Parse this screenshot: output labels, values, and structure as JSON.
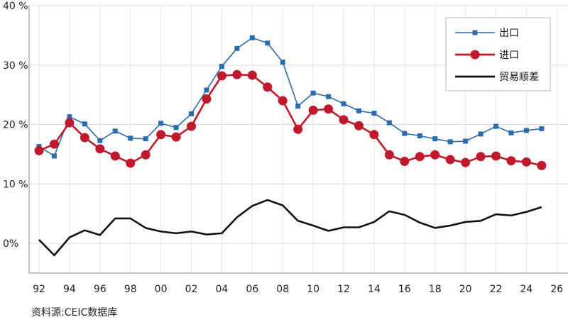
{
  "chart_data": {
    "type": "line",
    "x": [
      "92",
      "93",
      "94",
      "95",
      "96",
      "97",
      "98",
      "99",
      "00",
      "01",
      "02",
      "03",
      "04",
      "05",
      "06",
      "07",
      "08",
      "09",
      "10",
      "11",
      "12",
      "13",
      "14",
      "15",
      "16",
      "17",
      "18",
      "19",
      "20",
      "21",
      "22",
      "23",
      "24",
      "25"
    ],
    "x_tick_labels": [
      "92",
      "94",
      "96",
      "98",
      "00",
      "02",
      "04",
      "06",
      "08",
      "10",
      "12",
      "14",
      "16",
      "18",
      "20",
      "22",
      "24",
      "26"
    ],
    "y_tick_labels": [
      "0%",
      "10 %",
      "20 %",
      "30 %",
      "40 %"
    ],
    "ylim": [
      -5,
      40
    ],
    "grid": true,
    "legend_position": "top-right",
    "series": [
      {
        "name": "出口",
        "color": "#2b6cb0",
        "marker": "square",
        "values": [
          16.3,
          14.7,
          21.3,
          20.1,
          17.3,
          18.9,
          17.7,
          17.6,
          20.2,
          19.5,
          21.8,
          25.8,
          29.8,
          32.8,
          34.6,
          33.7,
          30.5,
          23.1,
          25.3,
          24.7,
          23.5,
          22.3,
          21.9,
          20.3,
          18.5,
          18.1,
          17.6,
          17.1,
          17.2,
          18.4,
          19.7,
          18.6,
          19.0,
          19.3
        ]
      },
      {
        "name": "进口",
        "color": "#c0192b",
        "marker": "circle",
        "values": [
          15.6,
          16.7,
          20.3,
          17.8,
          15.9,
          14.7,
          13.5,
          14.9,
          18.3,
          17.9,
          19.7,
          24.3,
          28.2,
          28.4,
          28.3,
          26.3,
          24.0,
          19.2,
          22.4,
          22.6,
          20.8,
          19.8,
          18.3,
          14.9,
          13.8,
          14.6,
          14.9,
          14.1,
          13.6,
          14.6,
          14.7,
          13.9,
          13.7,
          13.1
        ]
      },
      {
        "name": "贸易顺差",
        "color": "#111111",
        "marker": "none",
        "values": [
          0.6,
          -2.0,
          1.0,
          2.2,
          1.4,
          4.2,
          4.2,
          2.6,
          2.0,
          1.7,
          2.0,
          1.5,
          1.7,
          4.4,
          6.3,
          7.3,
          6.4,
          3.8,
          3.0,
          2.1,
          2.7,
          2.7,
          3.6,
          5.4,
          4.8,
          3.5,
          2.6,
          3.0,
          3.6,
          3.8,
          4.9,
          4.7,
          5.3,
          6.1
        ]
      }
    ]
  },
  "source_text": "资料源:CEIC数据库"
}
